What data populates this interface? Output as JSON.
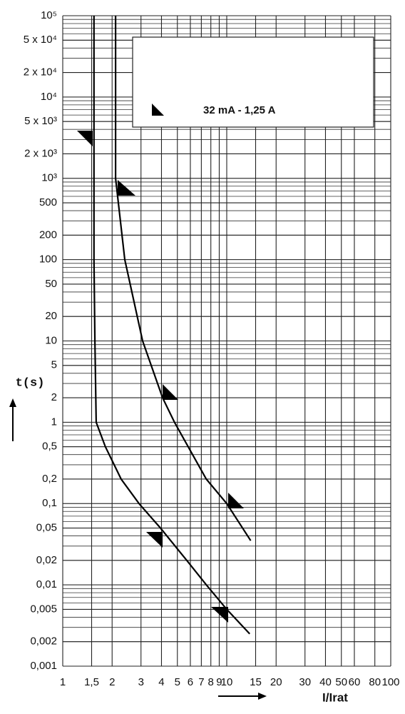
{
  "chart_data": {
    "type": "line",
    "log_x": true,
    "log_y": true,
    "grid": true,
    "xlabel": "I/Irat",
    "ylabel": "t(s)",
    "legend": "32  mA - 1,25 A",
    "xlim": [
      1,
      100
    ],
    "ylim": [
      0.001,
      100000
    ],
    "xticks": [
      1,
      {
        "value": 1.5,
        "label": "1,5"
      },
      2,
      3,
      4,
      5,
      6,
      7,
      8,
      9,
      10,
      15,
      20,
      30,
      40,
      50,
      60,
      80,
      100
    ],
    "yticks": [
      {
        "value": 100000,
        "label": "10⁵"
      },
      {
        "value": 50000,
        "label": "5 x 10⁴"
      },
      {
        "value": 20000,
        "label": "2 x 10⁴"
      },
      {
        "value": 10000,
        "label": "10⁴"
      },
      {
        "value": 5000,
        "label": "5 x 10³"
      },
      {
        "value": 2000,
        "label": "2 x 10³"
      },
      {
        "value": 1000,
        "label": "10³"
      },
      500,
      200,
      100,
      50,
      20,
      10,
      5,
      2,
      1,
      {
        "value": 0.5,
        "label": "0,5"
      },
      {
        "value": 0.2,
        "label": "0,2"
      },
      {
        "value": 0.1,
        "label": "0,1"
      },
      {
        "value": 0.05,
        "label": "0,05"
      },
      {
        "value": 0.02,
        "label": "0,02"
      },
      {
        "value": 0.01,
        "label": "0,01"
      },
      {
        "value": 0.005,
        "label": "0,005"
      },
      {
        "value": 0.002,
        "label": "0,002"
      },
      {
        "value": 0.001,
        "label": "0,001"
      }
    ],
    "series": [
      {
        "color": "#000000",
        "x": [
          1.55,
          1.55,
          1.57,
          1.6,
          1.82,
          2.27,
          2.92,
          3.94,
          5.7,
          7.5,
          10,
          13.8
        ],
        "values": [
          100000,
          100,
          10,
          1,
          0.5,
          0.2,
          0.1,
          0.05,
          0.02,
          0.01,
          0.005,
          0.0025
        ]
      },
      {
        "color": "#000000",
        "x": [
          2.1,
          2.1,
          2.39,
          3.07,
          4.06,
          4.8,
          7.5,
          10,
          14
        ],
        "values": [
          100000,
          1000,
          100,
          10,
          2,
          1,
          0.2,
          0.1,
          0.035
        ]
      }
    ]
  }
}
